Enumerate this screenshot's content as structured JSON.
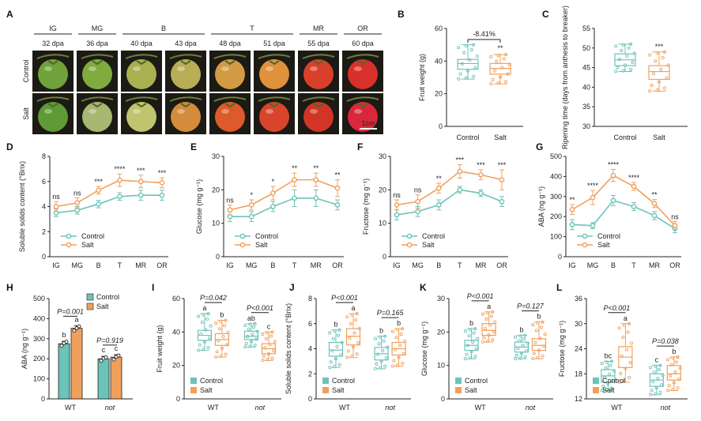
{
  "colors": {
    "control": "#6cc3b8",
    "salt": "#f0a05c"
  },
  "photo_panel": {
    "label": "A",
    "stages": [
      "IG",
      "MG",
      "B",
      "T",
      "MR",
      "OR"
    ],
    "dpa": [
      "32 dpa",
      "36 dpa",
      "40 dpa",
      "43 dpa",
      "48 dpa",
      "51 dpa",
      "55 dpa",
      "60 dpa"
    ],
    "rows": [
      "Control",
      "Salt"
    ],
    "scale_bar": "1cm",
    "fruit_colors_control": [
      "#6fa23a",
      "#7fab3f",
      "#a9b050",
      "#b9ad55",
      "#d39a44",
      "#e0913c",
      "#d8402a",
      "#d8302a"
    ],
    "fruit_colors_salt": [
      "#5e9a36",
      "#a8b772",
      "#c1c46f",
      "#d28c3b",
      "#dd5a2a",
      "#d8452b",
      "#d23426",
      "#d8283a"
    ]
  },
  "chart_data": [
    {
      "panel": "B",
      "type": "box",
      "categories": [
        "Control",
        "Salt"
      ],
      "ylabel": "Fruit weight (g)",
      "ylim": [
        0,
        60
      ],
      "yticks": [
        0,
        20,
        40,
        60
      ],
      "boxes": [
        {
          "min": 29,
          "q1": 35,
          "median": 38.5,
          "q3": 41,
          "max": 50
        },
        {
          "min": 26,
          "q1": 32,
          "median": 35.5,
          "q3": 38.5,
          "max": 44
        }
      ],
      "annotations": [
        "-8.41%",
        "**"
      ]
    },
    {
      "panel": "C",
      "type": "box",
      "categories": [
        "Control",
        "Salt"
      ],
      "ylabel": "Ripening time (days from anthesis to breaker)",
      "ylim": [
        30,
        55
      ],
      "yticks": [
        30,
        35,
        40,
        45,
        50,
        55
      ],
      "boxes": [
        {
          "min": 44,
          "q1": 45.5,
          "median": 47,
          "q3": 48.5,
          "max": 51
        },
        {
          "min": 39,
          "q1": 42,
          "median": 44,
          "q3": 45.5,
          "max": 49
        }
      ],
      "annotations": [
        "***"
      ]
    },
    {
      "panel": "D",
      "type": "line",
      "categories": [
        "IG",
        "MG",
        "B",
        "T",
        "MR",
        "OR"
      ],
      "ylabel": "Soluble solids content (°Brix)",
      "ylim": [
        0,
        8
      ],
      "yticks": [
        0,
        2,
        4,
        6,
        8
      ],
      "series": [
        {
          "name": "Control",
          "values": [
            3.5,
            3.7,
            4.2,
            4.8,
            4.9,
            4.9
          ],
          "errors": [
            0.3,
            0.3,
            0.3,
            0.3,
            0.4,
            0.4
          ]
        },
        {
          "name": "Salt",
          "values": [
            4.0,
            4.3,
            5.3,
            6.1,
            6.0,
            5.9
          ],
          "errors": [
            0.4,
            0.4,
            0.3,
            0.5,
            0.5,
            0.4
          ]
        }
      ],
      "stars": [
        "ns",
        "ns",
        "***",
        "****",
        "***",
        "***"
      ]
    },
    {
      "panel": "E",
      "type": "line",
      "categories": [
        "IG",
        "MG",
        "B",
        "T",
        "MR",
        "OR"
      ],
      "ylabel": "Glucose (mg g⁻¹)",
      "ylim": [
        0,
        30
      ],
      "yticks": [
        0,
        10,
        20,
        30
      ],
      "series": [
        {
          "name": "Control",
          "values": [
            12,
            12,
            15,
            17.5,
            17.5,
            15.5
          ],
          "errors": [
            1.5,
            1.5,
            1.5,
            2.5,
            2.5,
            1.5
          ]
        },
        {
          "name": "Salt",
          "values": [
            14,
            15.5,
            19,
            23,
            23,
            20.5
          ],
          "errors": [
            1.5,
            1.5,
            2,
            2,
            2,
            2.5
          ]
        }
      ],
      "stars": [
        "ns",
        "*",
        "*",
        "**",
        "**",
        "**"
      ]
    },
    {
      "panel": "F",
      "type": "line",
      "categories": [
        "IG",
        "MG",
        "B",
        "T",
        "MR",
        "OR"
      ],
      "ylabel": "Fructose (mg g⁻¹)",
      "ylim": [
        0,
        30
      ],
      "yticks": [
        0,
        10,
        20,
        30
      ],
      "series": [
        {
          "name": "Control",
          "values": [
            12.5,
            13.5,
            15.5,
            20,
            19,
            16.5
          ],
          "errors": [
            1.5,
            1.5,
            1.5,
            1,
            1,
            1.5
          ]
        },
        {
          "name": "Salt",
          "values": [
            15.5,
            16.5,
            20.5,
            25.5,
            24.5,
            23
          ],
          "errors": [
            1.5,
            2,
            1.5,
            2,
            1.5,
            3
          ]
        }
      ],
      "stars": [
        "ns",
        "ns",
        "**",
        "***",
        "***",
        "***"
      ]
    },
    {
      "panel": "G",
      "type": "line",
      "categories": [
        "IG",
        "MG",
        "B",
        "T",
        "MR",
        "OR"
      ],
      "ylabel": "ABA (ng g⁻¹)",
      "ylim": [
        0,
        500
      ],
      "yticks": [
        0,
        100,
        200,
        300,
        400,
        500
      ],
      "series": [
        {
          "name": "Control",
          "values": [
            160,
            155,
            280,
            250,
            205,
            140
          ],
          "errors": [
            25,
            15,
            25,
            20,
            20,
            20
          ]
        },
        {
          "name": "Salt",
          "values": [
            235,
            295,
            405,
            350,
            265,
            155
          ],
          "errors": [
            25,
            35,
            30,
            20,
            20,
            20
          ]
        }
      ],
      "stars": [
        "**",
        "****",
        "****",
        "****",
        "**",
        "ns"
      ]
    },
    {
      "panel": "H",
      "type": "bar",
      "categories": [
        "WT",
        "not"
      ],
      "ylabel": "ABA (ng g⁻¹)",
      "ylim": [
        0,
        500
      ],
      "yticks": [
        0,
        100,
        200,
        300,
        400,
        500
      ],
      "series": [
        {
          "name": "Control",
          "values": [
            275,
            200
          ],
          "errors": [
            12,
            12
          ],
          "points": [
            [
              265,
              278,
              285
            ],
            [
              190,
              202,
              207
            ]
          ],
          "letters": [
            "b",
            "c"
          ]
        },
        {
          "name": "Salt",
          "values": [
            352,
            208
          ],
          "errors": [
            12,
            12
          ],
          "points": [
            [
              340,
              352,
              362
            ],
            [
              196,
              210,
              216
            ]
          ],
          "letters": [
            "a",
            "c"
          ]
        }
      ],
      "pvalues": [
        "P=0.001",
        "P=0.919"
      ]
    },
    {
      "panel": "I",
      "type": "box",
      "categories": [
        "WT",
        "not"
      ],
      "ylabel": "Fruit weight (g)",
      "ylim": [
        0,
        60
      ],
      "yticks": [
        0,
        20,
        40,
        60
      ],
      "series": [
        {
          "name": "Control",
          "boxes": [
            {
              "min": 29,
              "q1": 35,
              "median": 38,
              "q3": 41,
              "max": 51
            },
            {
              "min": 31,
              "q1": 35.5,
              "median": 37.5,
              "q3": 40.5,
              "max": 45
            }
          ],
          "letters": [
            "a",
            "ab"
          ]
        },
        {
          "name": "Salt",
          "boxes": [
            {
              "min": 25,
              "q1": 32,
              "median": 35.5,
              "q3": 39,
              "max": 47
            },
            {
              "min": 23,
              "q1": 27,
              "median": 30,
              "q3": 33,
              "max": 40
            }
          ],
          "letters": [
            "b",
            "c"
          ]
        }
      ],
      "pvalues": [
        "P=0.042",
        "P<0.001"
      ]
    },
    {
      "panel": "J",
      "type": "box",
      "categories": [
        "WT",
        "not"
      ],
      "ylabel": "Soluble solids content (°Brix)",
      "ylim": [
        0,
        8
      ],
      "yticks": [
        0,
        2,
        4,
        6,
        8
      ],
      "series": [
        {
          "name": "Control",
          "boxes": [
            {
              "min": 2.5,
              "q1": 3.4,
              "median": 3.9,
              "q3": 4.5,
              "max": 5.5
            },
            {
              "min": 2.4,
              "q1": 3.1,
              "median": 3.6,
              "q3": 4.1,
              "max": 5.0
            }
          ],
          "letters": [
            "b",
            "b"
          ]
        },
        {
          "name": "Salt",
          "boxes": [
            {
              "min": 3.3,
              "q1": 4.3,
              "median": 5.0,
              "q3": 5.6,
              "max": 6.8
            },
            {
              "min": 2.6,
              "q1": 3.5,
              "median": 4.0,
              "q3": 4.5,
              "max": 5.6
            }
          ],
          "letters": [
            "a",
            "b"
          ]
        }
      ],
      "pvalues": [
        "P<0.001",
        "P=0.165"
      ]
    },
    {
      "panel": "K",
      "type": "box",
      "categories": [
        "WT",
        "not"
      ],
      "ylabel": "Glucose (mg g⁻¹)",
      "ylim": [
        0,
        30
      ],
      "yticks": [
        0,
        10,
        20,
        30
      ],
      "series": [
        {
          "name": "Control",
          "boxes": [
            {
              "min": 12,
              "q1": 14.5,
              "median": 16,
              "q3": 17.5,
              "max": 21
            },
            {
              "min": 12,
              "q1": 14,
              "median": 15.5,
              "q3": 17,
              "max": 19
            }
          ],
          "letters": [
            "b",
            "b"
          ]
        },
        {
          "name": "Salt",
          "boxes": [
            {
              "min": 17,
              "q1": 19,
              "median": 20.5,
              "q3": 22.5,
              "max": 26
            },
            {
              "min": 12,
              "q1": 14.5,
              "median": 16,
              "q3": 18,
              "max": 23
            }
          ],
          "letters": [
            "a",
            "b"
          ]
        }
      ],
      "pvalues": [
        "P<0.001",
        "P=0.127"
      ]
    },
    {
      "panel": "L",
      "type": "box",
      "categories": [
        "WT",
        "not"
      ],
      "ylabel": "Fructose (mg g⁻¹)",
      "ylim": [
        12,
        36
      ],
      "yticks": [
        12,
        18,
        24,
        30,
        36
      ],
      "series": [
        {
          "name": "Control",
          "boxes": [
            {
              "min": 14,
              "q1": 16,
              "median": 17.5,
              "q3": 19,
              "max": 21
            },
            {
              "min": 13,
              "q1": 15,
              "median": 16.5,
              "q3": 18,
              "max": 20
            }
          ],
          "letters": [
            "bc",
            "c"
          ]
        },
        {
          "name": "Salt",
          "boxes": [
            {
              "min": 16,
              "q1": 19.5,
              "median": 22,
              "q3": 24.5,
              "max": 30
            },
            {
              "min": 14,
              "q1": 16.5,
              "median": 18,
              "q3": 20,
              "max": 22
            }
          ],
          "letters": [
            "a",
            "b"
          ]
        }
      ],
      "pvalues": [
        "P<0.001",
        "P=0.038"
      ]
    }
  ]
}
